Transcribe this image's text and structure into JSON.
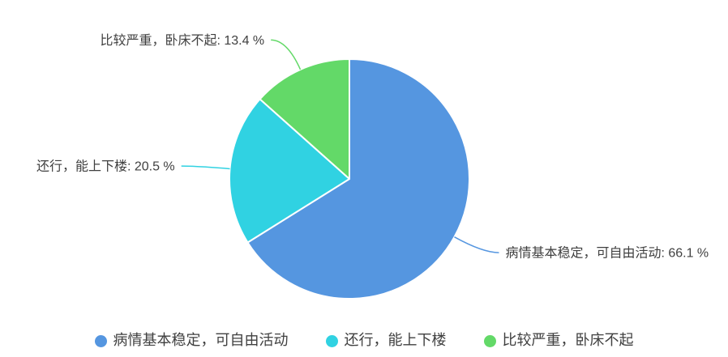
{
  "chart_data": {
    "type": "pie",
    "categories": [
      "病情基本稳定，可自由活动",
      "还行，能上下楼",
      "比较严重，卧床不起"
    ],
    "values": [
      66.1,
      20.5,
      13.4
    ],
    "unit": "%",
    "colors": [
      "#5596E0",
      "#30D2E2",
      "#63D968"
    ],
    "label_format": "{name}: {value} %",
    "start_angle": "top",
    "direction": "clockwise",
    "legend_position": "bottom",
    "labels": [
      "病情基本稳定，可自由活动: 66.1 %",
      "还行，能上下楼: 20.5 %",
      "比较严重，卧床不起: 13.4 %"
    ]
  },
  "legend": {
    "items": [
      {
        "label": "病情基本稳定，可自由活动",
        "color": "#5596E0"
      },
      {
        "label": "还行，能上下楼",
        "color": "#30D2E2"
      },
      {
        "label": "比较严重，卧床不起",
        "color": "#63D968"
      }
    ]
  },
  "colors": {
    "background": "#FFFFFF",
    "text": "#404040",
    "slice_border": "#FFFFFF"
  }
}
